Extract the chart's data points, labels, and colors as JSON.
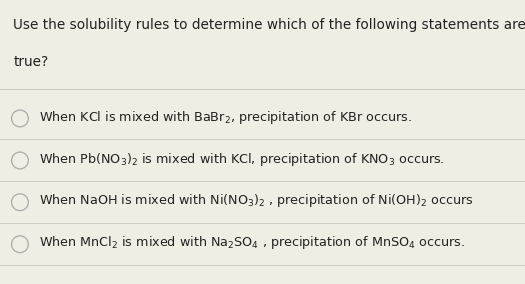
{
  "background_color": "#f0ede4",
  "title_line1": "Use the solubility rules to determine which of the following statements are",
  "title_line2": "true?",
  "options": [
    "When KCl is mixed with BaBr$_2$, precipitation of KBr occurs.",
    "When Pb(NO$_3$)$_2$ is mixed with KCl, precipitation of KNO$_3$ occurs.",
    "When NaOH is mixed with Ni(NO$_3$)$_2$ , precipitation of Ni(OH)$_2$ occurs",
    "When MnCl$_2$ is mixed with Na$_2$SO$_4$ , precipitation of MnSO$_4$ occurs."
  ],
  "text_color": "#222222",
  "title_fontsize": 9.8,
  "option_fontsize": 9.2,
  "circle_color": "#aaaaaa",
  "line_color": "#c8c8c0",
  "fig_width": 5.25,
  "fig_height": 2.84,
  "dpi": 100
}
